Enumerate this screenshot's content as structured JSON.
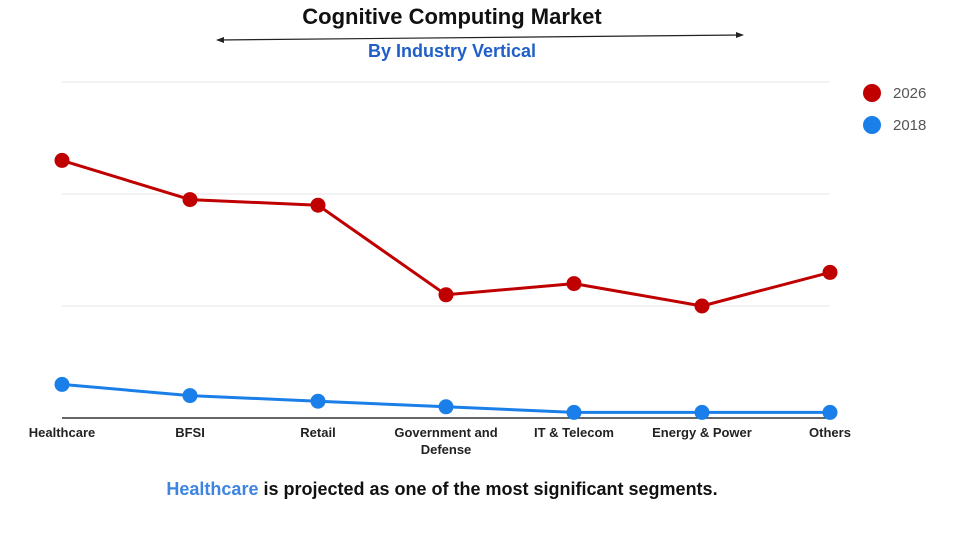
{
  "chart_data": {
    "type": "line",
    "title": "Cognitive Computing Market",
    "subtitle": "By Industry Vertical",
    "categories": [
      "Healthcare",
      "BFSI",
      "Retail",
      "Government and Defense",
      "IT & Telecom",
      "Energy & Power",
      "Others"
    ],
    "series": [
      {
        "name": "2026",
        "color": "#c00000",
        "values": [
          23,
          19.5,
          19,
          11,
          12,
          10,
          13
        ]
      },
      {
        "name": "2018",
        "color": "#1a7fe8",
        "values": [
          3,
          2,
          1.5,
          1,
          0.5,
          0.5,
          0.5
        ]
      }
    ],
    "ylim": [
      0,
      30
    ],
    "grid": true,
    "legend": "top-right",
    "xlabel": "",
    "ylabel": ""
  },
  "colors": {
    "subtitle": "#1f5fc7",
    "highlight": "#3d85e0"
  },
  "footer": {
    "highlight": "Healthcare",
    "rest": " is projected as one of the most significant segments."
  }
}
